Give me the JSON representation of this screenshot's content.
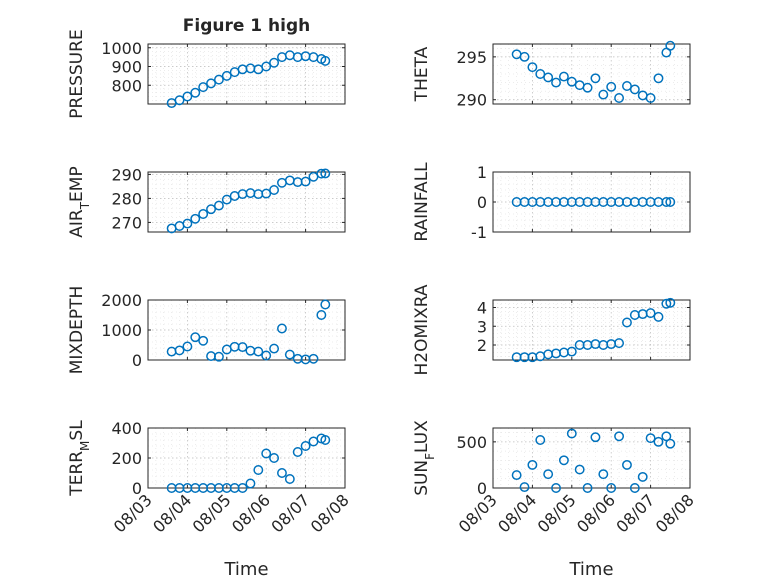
{
  "figure": {
    "title": "Figure 1 high",
    "xlabel": "Time"
  },
  "colors": {
    "marker": "#0072BD",
    "axes": "#262626",
    "grid": "#bdbdbd"
  },
  "chart_data": [
    {
      "type": "scatter",
      "id": "pressure",
      "ylabel": "PRESSURE",
      "ylim": [
        700,
        1020
      ],
      "yticks": [
        800,
        900,
        1000
      ],
      "yticklabels": [
        "800",
        "900",
        "1000"
      ],
      "xlim": [
        0,
        5
      ],
      "xticks": [
        0,
        1,
        2,
        3,
        4,
        5
      ],
      "xticklabels": [],
      "title": "Figure 1 high",
      "grid": "on",
      "x": [
        0.6,
        0.8,
        1.0,
        1.2,
        1.4,
        1.6,
        1.8,
        2.0,
        2.2,
        2.4,
        2.6,
        2.8,
        3.0,
        3.2,
        3.4,
        3.6,
        3.8,
        4.0,
        4.2,
        4.4,
        4.5
      ],
      "y": [
        705,
        720,
        740,
        760,
        790,
        810,
        830,
        850,
        870,
        885,
        890,
        885,
        900,
        920,
        950,
        960,
        950,
        955,
        950,
        940,
        930
      ]
    },
    {
      "type": "scatter",
      "id": "theta",
      "ylabel": "THETA",
      "ylim": [
        289.5,
        296.5
      ],
      "yticks": [
        290,
        295
      ],
      "yticklabels": [
        "290",
        "295"
      ],
      "xlim": [
        0,
        5
      ],
      "xticks": [
        0,
        1,
        2,
        3,
        4,
        5
      ],
      "xticklabels": [],
      "grid": "on",
      "x": [
        0.6,
        0.8,
        1.0,
        1.2,
        1.4,
        1.6,
        1.8,
        2.0,
        2.2,
        2.4,
        2.6,
        2.8,
        3.0,
        3.2,
        3.4,
        3.6,
        3.8,
        4.0,
        4.2,
        4.4,
        4.5
      ],
      "y": [
        295.3,
        295.0,
        293.8,
        293.0,
        292.6,
        292.0,
        292.7,
        292.1,
        291.7,
        291.4,
        292.5,
        290.6,
        291.5,
        290.2,
        291.6,
        291.2,
        290.5,
        290.2,
        292.5,
        295.5,
        296.3
      ]
    },
    {
      "type": "scatter",
      "id": "air_temp",
      "ylabel": "AIR",
      "ylabel_sub": "T",
      "ylabel_rest": "EMP",
      "ylim": [
        266,
        291
      ],
      "yticks": [
        270,
        280,
        290
      ],
      "yticklabels": [
        "270",
        "280",
        "290"
      ],
      "xlim": [
        0,
        5
      ],
      "xticks": [
        0,
        1,
        2,
        3,
        4,
        5
      ],
      "xticklabels": [],
      "grid": "on",
      "x": [
        0.6,
        0.8,
        1.0,
        1.2,
        1.4,
        1.6,
        1.8,
        2.0,
        2.2,
        2.4,
        2.6,
        2.8,
        3.0,
        3.2,
        3.4,
        3.6,
        3.8,
        4.0,
        4.2,
        4.4,
        4.5
      ],
      "y": [
        267.5,
        268.5,
        269.5,
        271.5,
        273.5,
        275.5,
        277.0,
        279.5,
        281.0,
        281.8,
        282.2,
        281.8,
        282.0,
        283.5,
        286.5,
        287.5,
        286.8,
        287.0,
        289.0,
        290.3,
        290.4
      ]
    },
    {
      "type": "scatter",
      "id": "rainfall",
      "ylabel": "RAINFALL",
      "ylim": [
        -1,
        1
      ],
      "yticks": [
        -1,
        0,
        1
      ],
      "yticklabels": [
        "-1",
        "0",
        "1"
      ],
      "xlim": [
        0,
        5
      ],
      "xticks": [
        0,
        1,
        2,
        3,
        4,
        5
      ],
      "xticklabels": [],
      "grid": "on",
      "x": [
        0.6,
        0.8,
        1.0,
        1.2,
        1.4,
        1.6,
        1.8,
        2.0,
        2.2,
        2.4,
        2.6,
        2.8,
        3.0,
        3.2,
        3.4,
        3.6,
        3.8,
        4.0,
        4.2,
        4.4,
        4.5
      ],
      "y": [
        0,
        0,
        0,
        0,
        0,
        0,
        0,
        0,
        0,
        0,
        0,
        0,
        0,
        0,
        0,
        0,
        0,
        0,
        0,
        0,
        0
      ]
    },
    {
      "type": "scatter",
      "id": "mixdepth",
      "ylabel": "MIXDEPTH",
      "ylim": [
        0,
        2000
      ],
      "yticks": [
        0,
        1000,
        2000
      ],
      "yticklabels": [
        "0",
        "1000",
        "2000"
      ],
      "xlim": [
        0,
        5
      ],
      "xticks": [
        0,
        1,
        2,
        3,
        4,
        5
      ],
      "xticklabels": [],
      "grid": "on",
      "x": [
        0.6,
        0.8,
        1.0,
        1.2,
        1.4,
        1.6,
        1.8,
        2.0,
        2.2,
        2.4,
        2.6,
        2.8,
        3.0,
        3.2,
        3.4,
        3.6,
        3.8,
        4.0,
        4.2,
        4.4,
        4.5
      ],
      "y": [
        280,
        320,
        450,
        760,
        640,
        130,
        110,
        350,
        440,
        430,
        310,
        280,
        150,
        380,
        1050,
        180,
        40,
        20,
        40,
        1500,
        1850
      ]
    },
    {
      "type": "scatter",
      "id": "h2omixra",
      "ylabel": "H2OMIXRA",
      "ylim": [
        1.2,
        4.4
      ],
      "yticks": [
        2,
        3,
        4
      ],
      "yticklabels": [
        "2",
        "3",
        "4"
      ],
      "xlim": [
        0,
        5
      ],
      "xticks": [
        0,
        1,
        2,
        3,
        4,
        5
      ],
      "xticklabels": [],
      "grid": "on",
      "x": [
        0.6,
        0.8,
        1.0,
        1.2,
        1.4,
        1.6,
        1.8,
        2.0,
        2.2,
        2.4,
        2.6,
        2.8,
        3.0,
        3.2,
        3.4,
        3.6,
        3.8,
        4.0,
        4.2,
        4.4,
        4.5
      ],
      "y": [
        1.35,
        1.35,
        1.35,
        1.4,
        1.5,
        1.55,
        1.6,
        1.65,
        2.0,
        2.0,
        2.05,
        2.0,
        2.05,
        2.1,
        3.2,
        3.6,
        3.65,
        3.7,
        3.5,
        4.2,
        4.25
      ]
    },
    {
      "type": "scatter",
      "id": "terr_msl",
      "ylabel": "TERR",
      "ylabel_sub": "M",
      "ylabel_rest": "SL",
      "ylim": [
        0,
        400
      ],
      "yticks": [
        0,
        200,
        400
      ],
      "yticklabels": [
        "0",
        "200",
        "400"
      ],
      "xlim": [
        0,
        5
      ],
      "xticks": [
        0,
        1,
        2,
        3,
        4,
        5
      ],
      "xticklabels": [
        "08/03",
        "08/04",
        "08/05",
        "08/06",
        "08/07",
        "08/08"
      ],
      "xlabel": "Time",
      "grid": "on",
      "x": [
        0.6,
        0.8,
        1.0,
        1.2,
        1.4,
        1.6,
        1.8,
        2.0,
        2.2,
        2.4,
        2.6,
        2.8,
        3.0,
        3.2,
        3.4,
        3.6,
        3.8,
        4.0,
        4.2,
        4.4,
        4.5
      ],
      "y": [
        0,
        0,
        0,
        0,
        0,
        0,
        0,
        0,
        0,
        0,
        30,
        120,
        230,
        200,
        100,
        60,
        240,
        280,
        310,
        330,
        320
      ]
    },
    {
      "type": "scatter",
      "id": "sun_flux",
      "ylabel": "SUN",
      "ylabel_sub": "F",
      "ylabel_rest": "LUX",
      "ylim": [
        0,
        650
      ],
      "yticks": [
        0,
        500
      ],
      "yticklabels": [
        "0",
        "500"
      ],
      "xlim": [
        0,
        5
      ],
      "xticks": [
        0,
        1,
        2,
        3,
        4,
        5
      ],
      "xticklabels": [
        "08/03",
        "08/04",
        "08/05",
        "08/06",
        "08/07",
        "08/08"
      ],
      "xlabel": "Time",
      "grid": "on",
      "x": [
        0.6,
        0.8,
        1.0,
        1.2,
        1.4,
        1.6,
        1.8,
        2.0,
        2.2,
        2.4,
        2.6,
        2.8,
        3.0,
        3.2,
        3.4,
        3.6,
        3.8,
        4.0,
        4.2,
        4.4,
        4.5
      ],
      "y": [
        140,
        10,
        250,
        520,
        150,
        0,
        300,
        590,
        200,
        0,
        550,
        150,
        0,
        560,
        250,
        0,
        120,
        540,
        500,
        560,
        480
      ]
    }
  ]
}
